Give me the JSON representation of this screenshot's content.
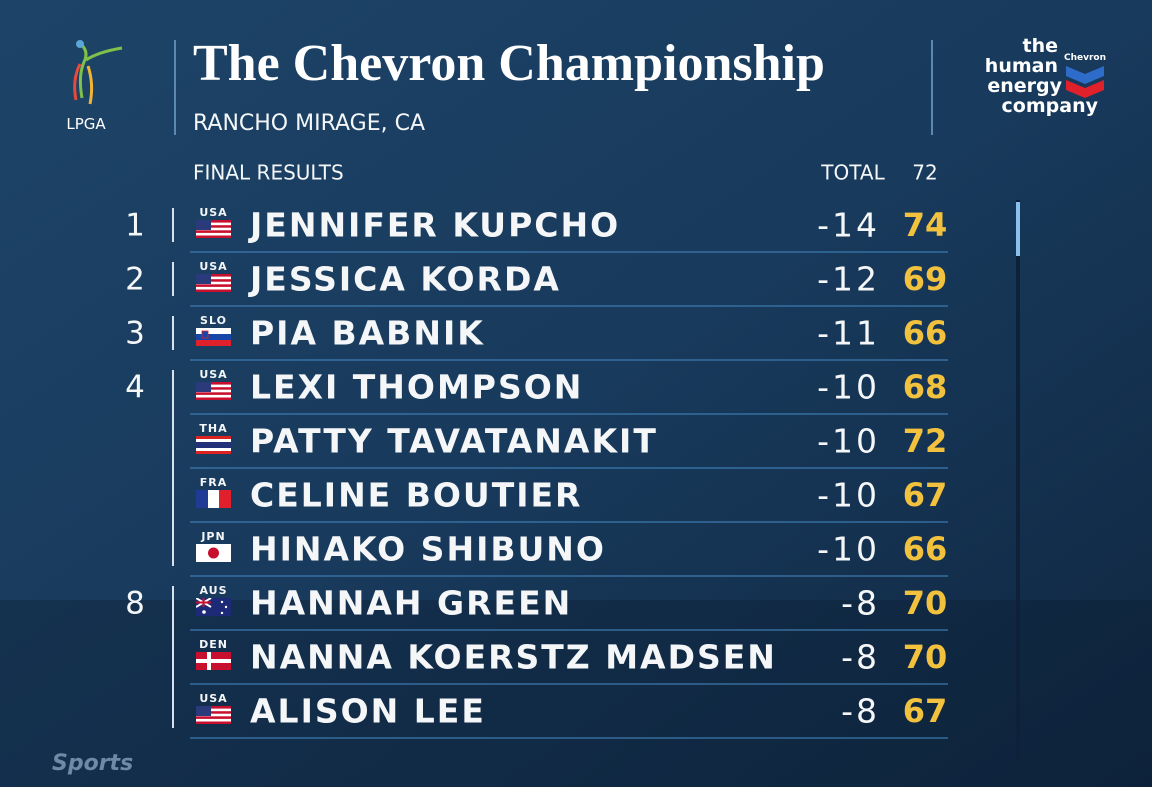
{
  "header": {
    "title": "The Chevron Championship",
    "subtitle": "RANCHO MIRAGE, CA",
    "left_logo": "LPGA",
    "right_logo": {
      "line1": "the",
      "line2": "human",
      "line3": "energy",
      "line4": "company",
      "brand": "Chevron"
    },
    "broadcaster": "Sports"
  },
  "table": {
    "section": "FINAL RESULTS",
    "columns": [
      "TOTAL",
      72
    ],
    "rows": [
      {
        "position": 1,
        "country": "USA",
        "name": "JENNIFER KUPCHO",
        "total": -14,
        "round": 74
      },
      {
        "position": 2,
        "country": "USA",
        "name": "JESSICA KORDA",
        "total": -12,
        "round": 69
      },
      {
        "position": 3,
        "country": "SLO",
        "name": "PIA BABNIK",
        "total": -11,
        "round": 66
      },
      {
        "position": 4,
        "country": "USA",
        "name": "LEXI THOMPSON",
        "total": -10,
        "round": 68
      },
      {
        "position": null,
        "country": "THA",
        "name": "PATTY TAVATANAKIT",
        "total": -10,
        "round": 72
      },
      {
        "position": null,
        "country": "FRA",
        "name": "CELINE BOUTIER",
        "total": -10,
        "round": 67
      },
      {
        "position": null,
        "country": "JPN",
        "name": "HINAKO SHIBUNO",
        "total": -10,
        "round": 66
      },
      {
        "position": 8,
        "country": "AUS",
        "name": "HANNAH GREEN",
        "total": -8,
        "round": 70
      },
      {
        "position": null,
        "country": "DEN",
        "name": "NANNA KOERSTZ MADSEN",
        "total": -8,
        "round": 70
      },
      {
        "position": null,
        "country": "USA",
        "name": "ALISON LEE",
        "total": -8,
        "round": 67
      }
    ]
  }
}
